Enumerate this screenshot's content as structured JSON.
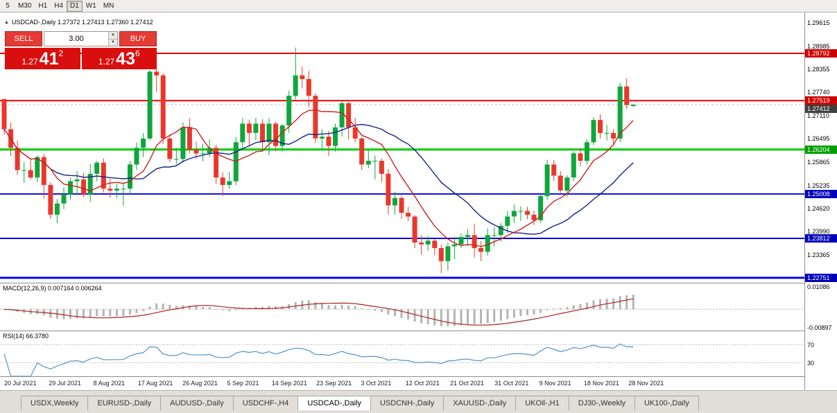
{
  "toolbar": {
    "timeframes": [
      {
        "label": "5",
        "active": false
      },
      {
        "label": "M30",
        "active": false
      },
      {
        "label": "H1",
        "active": false
      },
      {
        "label": "H4",
        "active": false
      },
      {
        "label": "D1",
        "active": true
      },
      {
        "label": "W1",
        "active": false
      },
      {
        "label": "MN",
        "active": false
      }
    ]
  },
  "trade_panel": {
    "sell_label": "SELL",
    "buy_label": "BUY",
    "volume": "3.00",
    "spinner_up": "▲",
    "spinner_down": "▼",
    "sell_price": {
      "small": "1.27",
      "big": "41",
      "sup": "2"
    },
    "buy_price": {
      "small": "1.27",
      "big": "43",
      "sup": "6"
    }
  },
  "chart": {
    "collapse_icon": "▲",
    "header": "USDCAD-,Daily  1.27372 1.27413 1.27360 1.27412",
    "scale": {
      "price_max": 1.29893,
      "price_min": 1.22618
    },
    "axis_ticks": [
      "1.29615",
      "1.28985",
      "1.28355",
      "1.27740",
      "1.27110",
      "1.26495",
      "1.25865",
      "1.25235",
      "1.24620",
      "1.23990",
      "1.23365"
    ],
    "levels": [
      {
        "price": 1.28792,
        "label": "1.28792",
        "color": "#e60000",
        "thickness": 2,
        "badge_color": "#cc0000"
      },
      {
        "price": 1.27519,
        "label": "1.27519",
        "color": "#e60000",
        "thickness": 2,
        "badge_color": "#cc0000"
      },
      {
        "price": 1.26204,
        "label": "1.26204",
        "color": "#00cc00",
        "thickness": 3,
        "badge_color": "#00a000"
      },
      {
        "price": 1.25008,
        "label": "1.25008",
        "color": "#0a0ae0",
        "thickness": 2,
        "badge_color": "#0000bb"
      },
      {
        "price": 1.23812,
        "label": "1.23812",
        "color": "#0a0ae0",
        "thickness": 2,
        "badge_color": "#0000bb"
      },
      {
        "price": 1.22751,
        "label": "1.22751",
        "color": "#0a0ae0",
        "thickness": 3,
        "badge_color": "#0000bb"
      }
    ],
    "current_price": {
      "value": 1.27412,
      "label": "1.27412",
      "badge_color": "#404040"
    },
    "colors": {
      "up": "#0fa63c",
      "down": "#e8382b",
      "ma_fast": "#cc2020",
      "ma_slow": "#14218c"
    },
    "ma_fast_period": 8,
    "ma_slow_period": 20,
    "candles": [
      [
        1.2756,
        1.2758,
        1.266,
        1.2675
      ],
      [
        1.2675,
        1.2693,
        1.2603,
        1.2625
      ],
      [
        1.2625,
        1.2644,
        1.2552,
        1.2565
      ],
      [
        1.2565,
        1.2587,
        1.253,
        1.2565
      ],
      [
        1.2565,
        1.2595,
        1.254,
        1.2545
      ],
      [
        1.2545,
        1.2605,
        1.2533,
        1.26
      ],
      [
        1.26,
        1.2608,
        1.2488,
        1.2525
      ],
      [
        1.2525,
        1.2532,
        1.2433,
        1.2445
      ],
      [
        1.2445,
        1.2487,
        1.2422,
        1.2475
      ],
      [
        1.2475,
        1.2519,
        1.246,
        1.25
      ],
      [
        1.25,
        1.2545,
        1.2485,
        1.2535
      ],
      [
        1.2535,
        1.2562,
        1.25,
        1.254
      ],
      [
        1.254,
        1.2558,
        1.2492,
        1.25
      ],
      [
        1.25,
        1.2581,
        1.2479,
        1.2555
      ],
      [
        1.2555,
        1.259,
        1.2535,
        1.2585
      ],
      [
        1.2585,
        1.2596,
        1.2505,
        1.2515
      ],
      [
        1.2515,
        1.2542,
        1.2491,
        1.251
      ],
      [
        1.251,
        1.2528,
        1.2489,
        1.2515
      ],
      [
        1.2515,
        1.2529,
        1.2469,
        1.2515
      ],
      [
        1.2515,
        1.259,
        1.2501,
        1.258
      ],
      [
        1.258,
        1.2639,
        1.2565,
        1.2625
      ],
      [
        1.2625,
        1.2665,
        1.26,
        1.265
      ],
      [
        1.265,
        1.2834,
        1.2645,
        1.283
      ],
      [
        1.283,
        1.284,
        1.2775,
        1.282
      ],
      [
        1.282,
        1.2825,
        1.2635,
        1.265
      ],
      [
        1.265,
        1.2662,
        1.2586,
        1.2595
      ],
      [
        1.2595,
        1.2625,
        1.258,
        1.2595
      ],
      [
        1.2595,
        1.2693,
        1.2585,
        1.268
      ],
      [
        1.268,
        1.2705,
        1.261,
        1.262
      ],
      [
        1.262,
        1.2642,
        1.2595,
        1.261
      ],
      [
        1.261,
        1.2635,
        1.2589,
        1.261
      ],
      [
        1.261,
        1.2648,
        1.26,
        1.2625
      ],
      [
        1.2625,
        1.2633,
        1.2528,
        1.2545
      ],
      [
        1.2545,
        1.2559,
        1.2495,
        1.2525
      ],
      [
        1.2525,
        1.256,
        1.2515,
        1.2535
      ],
      [
        1.2535,
        1.2654,
        1.2525,
        1.264
      ],
      [
        1.264,
        1.2705,
        1.2625,
        1.269
      ],
      [
        1.269,
        1.27,
        1.263,
        1.2665
      ],
      [
        1.2665,
        1.2706,
        1.2645,
        1.269
      ],
      [
        1.269,
        1.2702,
        1.262,
        1.264
      ],
      [
        1.264,
        1.2705,
        1.2605,
        1.269
      ],
      [
        1.269,
        1.2695,
        1.2615,
        1.263
      ],
      [
        1.263,
        1.2689,
        1.2615,
        1.2685
      ],
      [
        1.2685,
        1.2779,
        1.2665,
        1.2765
      ],
      [
        1.2765,
        1.2895,
        1.2755,
        1.282
      ],
      [
        1.282,
        1.2843,
        1.2785,
        1.281
      ],
      [
        1.281,
        1.2832,
        1.2735,
        1.2765
      ],
      [
        1.2765,
        1.2772,
        1.2638,
        1.265
      ],
      [
        1.265,
        1.2675,
        1.2621,
        1.2655
      ],
      [
        1.2655,
        1.267,
        1.2603,
        1.263
      ],
      [
        1.263,
        1.269,
        1.2615,
        1.268
      ],
      [
        1.268,
        1.275,
        1.2655,
        1.2745
      ],
      [
        1.2745,
        1.2748,
        1.2648,
        1.268
      ],
      [
        1.268,
        1.2705,
        1.264,
        1.265
      ],
      [
        1.265,
        1.2655,
        1.2565,
        1.258
      ],
      [
        1.258,
        1.262,
        1.257,
        1.259
      ],
      [
        1.259,
        1.2604,
        1.254,
        1.259
      ],
      [
        1.259,
        1.2596,
        1.2533,
        1.2555
      ],
      [
        1.2555,
        1.2568,
        1.2446,
        1.247
      ],
      [
        1.247,
        1.2507,
        1.2445,
        1.249
      ],
      [
        1.249,
        1.2495,
        1.2434,
        1.245
      ],
      [
        1.245,
        1.2466,
        1.2428,
        1.244
      ],
      [
        1.244,
        1.2444,
        1.2355,
        1.237
      ],
      [
        1.237,
        1.239,
        1.2337,
        1.2365
      ],
      [
        1.2365,
        1.2388,
        1.2348,
        1.2375
      ],
      [
        1.2375,
        1.238,
        1.2336,
        1.2355
      ],
      [
        1.2355,
        1.2364,
        1.2288,
        1.232
      ],
      [
        1.232,
        1.237,
        1.2295,
        1.236
      ],
      [
        1.236,
        1.2385,
        1.2325,
        1.2365
      ],
      [
        1.2365,
        1.2395,
        1.2355,
        1.2385
      ],
      [
        1.2385,
        1.2405,
        1.236,
        1.239
      ],
      [
        1.239,
        1.242,
        1.233,
        1.2355
      ],
      [
        1.2355,
        1.2374,
        1.232,
        1.2345
      ],
      [
        1.2345,
        1.2408,
        1.2335,
        1.239
      ],
      [
        1.239,
        1.2412,
        1.2359,
        1.239
      ],
      [
        1.239,
        1.2423,
        1.2372,
        1.2415
      ],
      [
        1.2415,
        1.2455,
        1.2396,
        1.244
      ],
      [
        1.244,
        1.2472,
        1.2423,
        1.2455
      ],
      [
        1.2455,
        1.2468,
        1.2428,
        1.2455
      ],
      [
        1.2455,
        1.2466,
        1.2433,
        1.2445
      ],
      [
        1.2445,
        1.2456,
        1.2417,
        1.243
      ],
      [
        1.243,
        1.2501,
        1.2423,
        1.2495
      ],
      [
        1.2495,
        1.2593,
        1.2485,
        1.258
      ],
      [
        1.258,
        1.2592,
        1.2536,
        1.255
      ],
      [
        1.255,
        1.2562,
        1.2504,
        1.251
      ],
      [
        1.251,
        1.2551,
        1.2493,
        1.2545
      ],
      [
        1.2545,
        1.2616,
        1.2535,
        1.261
      ],
      [
        1.261,
        1.2625,
        1.2575,
        1.259
      ],
      [
        1.259,
        1.2648,
        1.258,
        1.264
      ],
      [
        1.264,
        1.2708,
        1.2632,
        1.27
      ],
      [
        1.27,
        1.2715,
        1.265,
        1.2665
      ],
      [
        1.2665,
        1.2687,
        1.2645,
        1.2665
      ],
      [
        1.2665,
        1.2675,
        1.2636,
        1.265
      ],
      [
        1.265,
        1.28,
        1.264,
        1.279
      ],
      [
        1.279,
        1.2812,
        1.273,
        1.274
      ],
      [
        1.27372,
        1.27413,
        1.2736,
        1.27412
      ]
    ]
  },
  "macd": {
    "label": "MACD(12,26,9) 0.007164 0.006264",
    "fast": 12,
    "slow": 26,
    "signal": 9,
    "scale": {
      "max": 0.0125,
      "min": -0.0103
    },
    "axis_labels": [
      {
        "value": 0.01086,
        "label": "0.01086"
      },
      {
        "value": -0.00897,
        "label": "-0.00897"
      }
    ],
    "bar_color": "#b4b4b4",
    "line_color": "#aa2222"
  },
  "rsi": {
    "label": "RSI(14) 66.3780",
    "period": 14,
    "levels": [
      {
        "value": 70,
        "label": "70"
      },
      {
        "value": 30,
        "label": "30"
      }
    ],
    "line_color": "#4f93ce"
  },
  "date_axis": {
    "labels": [
      "20 Jul 2021",
      "29 Jul 2021",
      "8 Aug 2021",
      "17 Aug 2021",
      "26 Aug 2021",
      "5 Sep 2021",
      "14 Sep 2021",
      "23 Sep 2021",
      "3 Oct 2021",
      "12 Oct 2021",
      "21 Oct 2021",
      "31 Oct 2021",
      "9 Nov 2021",
      "18 Nov 2021",
      "28 Nov 2021"
    ]
  },
  "tabs": [
    {
      "label": "USDX,Weekly",
      "active": false
    },
    {
      "label": "EURUSD-,Daily",
      "active": false
    },
    {
      "label": "AUDUSD-,Daily",
      "active": false
    },
    {
      "label": "USDCHF-,H4",
      "active": false
    },
    {
      "label": "USDCAD-,Daily",
      "active": true
    },
    {
      "label": "USDCNH-,Daily",
      "active": false
    },
    {
      "label": "XAUUSD-,Daily",
      "active": false
    },
    {
      "label": "UKOil-,H1",
      "active": false
    },
    {
      "label": "DJ30-,Weekly",
      "active": false
    },
    {
      "label": "UK100-,Daily",
      "active": false
    }
  ]
}
